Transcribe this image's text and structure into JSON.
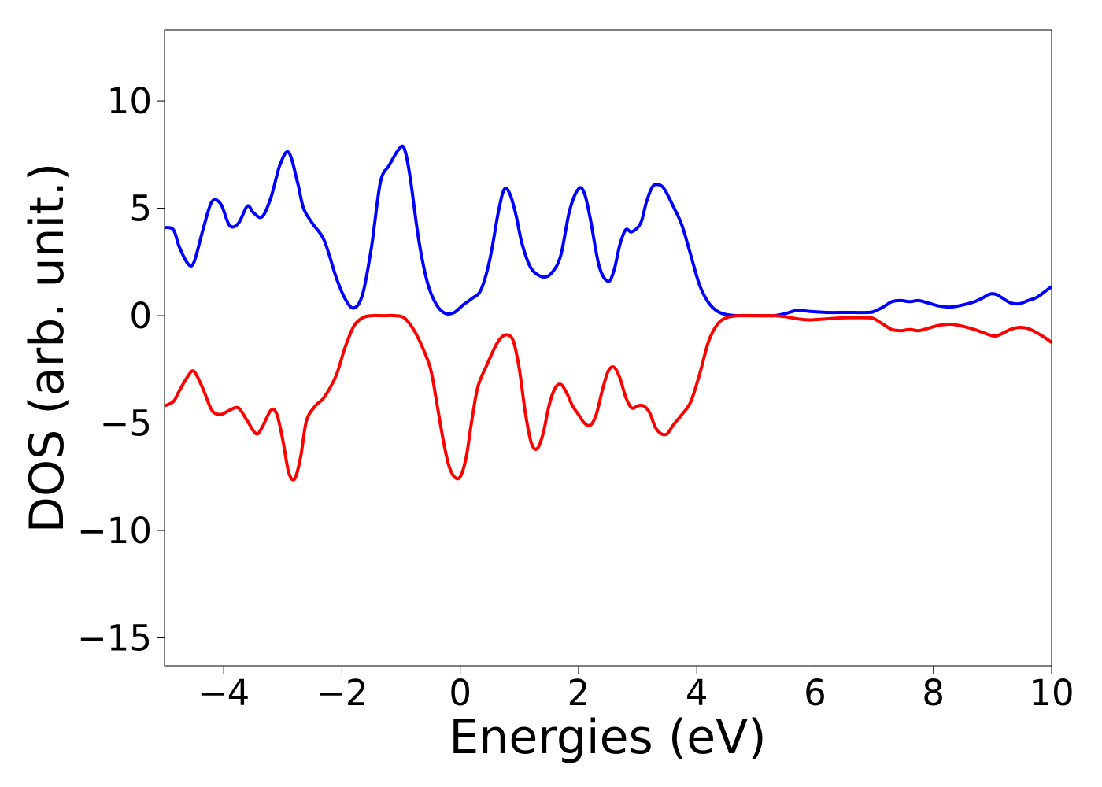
{
  "chart_data": {
    "type": "line",
    "xlabel": "Energies (eV)",
    "ylabel": "DOS (arb. unit.)",
    "xlim": [
      -5,
      10
    ],
    "ylim": [
      -16.3,
      13.3
    ],
    "xticks": [
      -4,
      -2,
      0,
      2,
      4,
      6,
      8,
      10
    ],
    "yticks": [
      -15,
      -10,
      -5,
      0,
      5,
      10
    ],
    "xtick_labels": [
      "−4",
      "−2",
      "0",
      "2",
      "4",
      "6",
      "8",
      "10"
    ],
    "ytick_labels": [
      "−15",
      "−10",
      "−5",
      "0",
      "5",
      "10"
    ],
    "grid": false,
    "series": [
      {
        "color": "#0000ff",
        "x": [
          -5,
          -4.85,
          -4.75,
          -4.6,
          -4.5,
          -4.35,
          -4.2,
          -4.05,
          -3.9,
          -3.75,
          -3.6,
          -3.5,
          -3.35,
          -3.2,
          -3.05,
          -2.9,
          -2.75,
          -2.65,
          -2.5,
          -2.3,
          -2.1,
          -1.95,
          -1.8,
          -1.65,
          -1.5,
          -1.35,
          -1.2,
          -1.05,
          -0.95,
          -0.85,
          -0.7,
          -0.55,
          -0.4,
          -0.25,
          -0.1,
          0.05,
          0.2,
          0.35,
          0.5,
          0.65,
          0.75,
          0.85,
          0.95,
          1.05,
          1.2,
          1.4,
          1.55,
          1.7,
          1.85,
          2.0,
          2.1,
          2.2,
          2.35,
          2.5,
          2.6,
          2.7,
          2.8,
          2.9,
          3.05,
          3.15,
          3.25,
          3.35,
          3.45,
          3.6,
          3.75,
          3.9,
          4.05,
          4.2,
          4.35,
          4.5,
          4.7,
          5.0,
          5.3,
          5.5,
          5.7,
          5.9,
          6.2,
          6.5,
          6.9,
          7.0,
          7.15,
          7.3,
          7.45,
          7.6,
          7.75,
          7.9,
          8.1,
          8.3,
          8.5,
          8.7,
          8.85,
          8.95,
          9.05,
          9.15,
          9.3,
          9.45,
          9.6,
          9.75,
          9.9,
          10
        ],
        "y": [
          4.1,
          4.0,
          3.2,
          2.4,
          2.5,
          4.0,
          5.3,
          5.2,
          4.2,
          4.3,
          5.1,
          4.8,
          4.6,
          5.5,
          7.0,
          7.6,
          6.2,
          5.0,
          4.3,
          3.5,
          1.8,
          0.8,
          0.35,
          1.0,
          3.2,
          6.2,
          7.0,
          7.7,
          7.8,
          6.5,
          3.5,
          1.5,
          0.5,
          0.1,
          0.15,
          0.5,
          0.8,
          1.2,
          2.6,
          4.9,
          5.9,
          5.6,
          4.6,
          3.3,
          2.2,
          1.8,
          2.0,
          2.8,
          4.9,
          5.9,
          5.7,
          4.5,
          2.3,
          1.6,
          2.1,
          3.3,
          4.0,
          3.9,
          4.3,
          5.3,
          6.0,
          6.1,
          5.9,
          5.1,
          4.2,
          2.8,
          1.4,
          0.6,
          0.2,
          0.05,
          0.0,
          0.0,
          0.0,
          0.1,
          0.25,
          0.2,
          0.15,
          0.15,
          0.15,
          0.2,
          0.4,
          0.65,
          0.7,
          0.65,
          0.7,
          0.6,
          0.45,
          0.4,
          0.5,
          0.65,
          0.85,
          1.0,
          1.0,
          0.85,
          0.6,
          0.55,
          0.7,
          0.85,
          1.15,
          1.35
        ]
      },
      {
        "color": "#ff0000",
        "x": [
          -5,
          -4.85,
          -4.75,
          -4.6,
          -4.5,
          -4.35,
          -4.2,
          -4.05,
          -3.9,
          -3.75,
          -3.6,
          -3.45,
          -3.35,
          -3.2,
          -3.1,
          -3.0,
          -2.9,
          -2.8,
          -2.7,
          -2.6,
          -2.45,
          -2.3,
          -2.1,
          -1.95,
          -1.8,
          -1.65,
          -1.5,
          -1.3,
          -1.1,
          -0.95,
          -0.8,
          -0.65,
          -0.5,
          -0.4,
          -0.3,
          -0.2,
          -0.1,
          0.0,
          0.1,
          0.2,
          0.3,
          0.45,
          0.6,
          0.7,
          0.8,
          0.9,
          1.0,
          1.1,
          1.2,
          1.3,
          1.4,
          1.5,
          1.6,
          1.7,
          1.8,
          1.9,
          2.0,
          2.1,
          2.2,
          2.3,
          2.4,
          2.5,
          2.6,
          2.7,
          2.8,
          2.9,
          3.0,
          3.1,
          3.2,
          3.3,
          3.4,
          3.5,
          3.6,
          3.75,
          3.9,
          4.05,
          4.2,
          4.35,
          4.5,
          4.7,
          5.0,
          5.3,
          5.5,
          5.7,
          5.9,
          6.2,
          6.5,
          6.9,
          7.0,
          7.15,
          7.3,
          7.45,
          7.6,
          7.75,
          7.9,
          8.1,
          8.3,
          8.5,
          8.7,
          8.85,
          8.95,
          9.05,
          9.15,
          9.3,
          9.45,
          9.6,
          9.75,
          9.9,
          10
        ],
        "y": [
          -4.2,
          -4.0,
          -3.5,
          -2.8,
          -2.6,
          -3.4,
          -4.4,
          -4.6,
          -4.4,
          -4.3,
          -4.9,
          -5.5,
          -5.2,
          -4.4,
          -4.6,
          -5.8,
          -7.3,
          -7.6,
          -6.6,
          -4.9,
          -4.2,
          -3.8,
          -2.8,
          -1.5,
          -0.5,
          -0.1,
          0.0,
          0.0,
          0.0,
          -0.1,
          -0.6,
          -1.4,
          -2.5,
          -4.0,
          -5.6,
          -6.9,
          -7.5,
          -7.5,
          -6.6,
          -4.8,
          -3.3,
          -2.3,
          -1.4,
          -1.0,
          -0.9,
          -1.2,
          -2.5,
          -4.5,
          -5.9,
          -6.2,
          -5.5,
          -4.2,
          -3.4,
          -3.2,
          -3.6,
          -4.2,
          -4.6,
          -5.0,
          -5.1,
          -4.6,
          -3.5,
          -2.6,
          -2.4,
          -2.9,
          -3.8,
          -4.3,
          -4.2,
          -4.2,
          -4.5,
          -5.2,
          -5.5,
          -5.5,
          -5.1,
          -4.6,
          -4.0,
          -2.7,
          -1.2,
          -0.4,
          -0.1,
          0.0,
          0.0,
          0.0,
          -0.05,
          -0.15,
          -0.2,
          -0.15,
          -0.1,
          -0.1,
          -0.15,
          -0.4,
          -0.65,
          -0.7,
          -0.65,
          -0.7,
          -0.6,
          -0.45,
          -0.4,
          -0.5,
          -0.65,
          -0.8,
          -0.9,
          -0.95,
          -0.85,
          -0.65,
          -0.55,
          -0.6,
          -0.8,
          -1.05,
          -1.25
        ]
      }
    ]
  }
}
